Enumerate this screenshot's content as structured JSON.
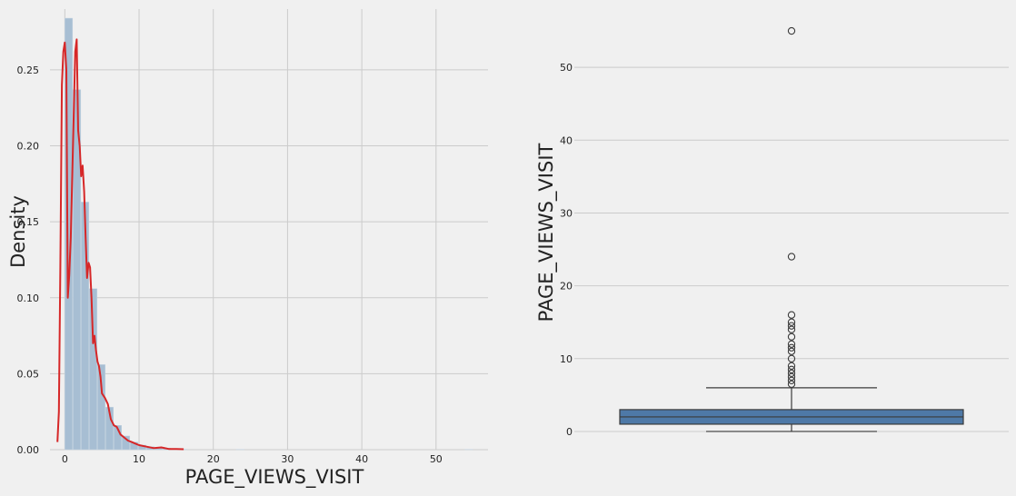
{
  "colors": {
    "background": "#f0f0f0",
    "grid": "#cbcbcb",
    "hist_fill": "#a7bed3",
    "kde_line": "#d62728",
    "box_fill": "#4e79a7",
    "box_edge": "#3a3a3a"
  },
  "chart_data": [
    {
      "type": "histogram",
      "xlabel": "PAGE_VIEWS_VISIT",
      "ylabel": "Density",
      "xlim": [
        -2,
        57
      ],
      "ylim": [
        0,
        0.29
      ],
      "xticks": [
        0,
        10,
        20,
        30,
        40,
        50
      ],
      "yticks": [
        0.0,
        0.05,
        0.1,
        0.15,
        0.2,
        0.25
      ],
      "ytick_labels": [
        "0.00",
        "0.05",
        "0.10",
        "0.15",
        "0.20",
        "0.25"
      ],
      "grid": true,
      "bin_width": 1.1,
      "bins": [
        {
          "x0": 0.0,
          "value": 0.284
        },
        {
          "x0": 1.1,
          "value": 0.237
        },
        {
          "x0": 2.2,
          "value": 0.163
        },
        {
          "x0": 3.3,
          "value": 0.106
        },
        {
          "x0": 4.4,
          "value": 0.056
        },
        {
          "x0": 5.5,
          "value": 0.028
        },
        {
          "x0": 6.6,
          "value": 0.016
        },
        {
          "x0": 7.7,
          "value": 0.009
        },
        {
          "x0": 8.8,
          "value": 0.005
        },
        {
          "x0": 9.9,
          "value": 0.003
        },
        {
          "x0": 11.0,
          "value": 0.002
        },
        {
          "x0": 12.1,
          "value": 0.001
        },
        {
          "x0": 13.2,
          "value": 0.001
        },
        {
          "x0": 14.3,
          "value": 0.0005
        },
        {
          "x0": 15.4,
          "value": 0.0003
        },
        {
          "x0": 23.1,
          "value": 0.0002
        },
        {
          "x0": 53.9,
          "value": 0.0002
        }
      ],
      "kde": {
        "x": [
          -1.0,
          -0.8,
          -0.6,
          -0.4,
          -0.2,
          0.0,
          0.2,
          0.4,
          0.6,
          0.8,
          1.0,
          1.2,
          1.4,
          1.6,
          1.8,
          2.0,
          2.2,
          2.4,
          2.6,
          2.8,
          3.0,
          3.2,
          3.4,
          3.6,
          3.8,
          4.0,
          4.2,
          4.4,
          4.6,
          4.8,
          5.0,
          5.4,
          5.8,
          6.2,
          6.6,
          7.0,
          7.5,
          8.0,
          8.5,
          9.0,
          9.5,
          10.0,
          11.0,
          12.0,
          13.0,
          14.0,
          15.0,
          16.0
        ],
        "y": [
          0.005,
          0.025,
          0.12,
          0.24,
          0.262,
          0.268,
          0.25,
          0.1,
          0.115,
          0.14,
          0.18,
          0.22,
          0.262,
          0.27,
          0.21,
          0.2,
          0.18,
          0.187,
          0.17,
          0.14,
          0.113,
          0.123,
          0.12,
          0.1,
          0.07,
          0.075,
          0.065,
          0.058,
          0.055,
          0.048,
          0.037,
          0.034,
          0.03,
          0.02,
          0.016,
          0.015,
          0.01,
          0.008,
          0.006,
          0.005,
          0.004,
          0.003,
          0.002,
          0.001,
          0.0015,
          0.0005,
          0.0005,
          0.0003
        ]
      }
    },
    {
      "type": "box",
      "ylabel": "PAGE_VIEWS_VISIT",
      "xlabel": "",
      "ylim": [
        -2.5,
        58
      ],
      "yticks": [
        0,
        10,
        20,
        30,
        40,
        50
      ],
      "grid": true,
      "whisker_low": 0,
      "q1": 1,
      "median": 2,
      "q3": 3,
      "whisker_high": 6,
      "outliers": [
        6.5,
        7,
        7.5,
        8,
        8.5,
        9,
        10,
        11,
        11.5,
        12,
        13,
        14,
        14.5,
        15,
        16,
        24,
        55
      ]
    }
  ]
}
